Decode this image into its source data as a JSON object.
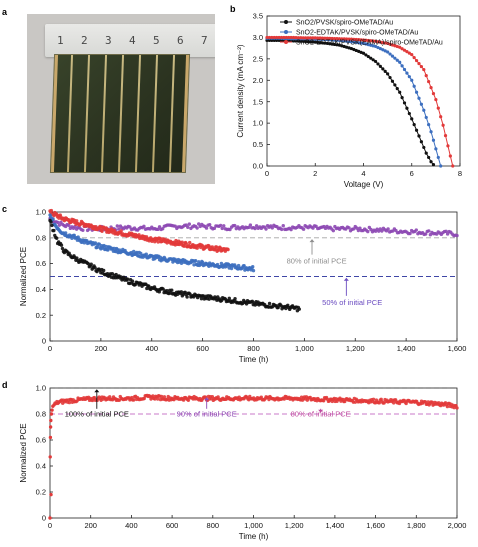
{
  "panel_labels": {
    "a": "a",
    "b": "b",
    "c": "c",
    "d": "d"
  },
  "photo": {
    "ruler_numbers": [
      "1",
      "2",
      "3",
      "4",
      "5",
      "6",
      "7"
    ]
  },
  "colors": {
    "black_series": "#111111",
    "blue_series": "#3d6fbf",
    "red_series": "#e23a3a",
    "purple_series": "#8c47b3",
    "ref_gray": "#a3a3a3",
    "ref_blue": "#3f46a6",
    "ref_black": "#444444",
    "ref_pink": "#c879c8"
  },
  "chart_data": [
    {
      "panel": "b",
      "type": "line",
      "xlabel": "Voltage (V)",
      "ylabel": "Current density (mA cm⁻²)",
      "xlim": [
        0,
        8
      ],
      "ylim": [
        0,
        3.5
      ],
      "xticks": [
        "0",
        "2",
        "4",
        "6",
        "8"
      ],
      "yticks": [
        "0.0",
        "0.5",
        "1.0",
        "1.5",
        "2.0",
        "2.5",
        "3.0",
        "3.5"
      ],
      "legend_position": "top-right",
      "series": [
        {
          "name": "SnO2/PVSK/spiro-OMeTAD/Au",
          "color": "#111111",
          "x": [
            0,
            0.5,
            1,
            1.5,
            2,
            2.5,
            3,
            3.5,
            4,
            4.5,
            5,
            5.5,
            6,
            6.3,
            6.6,
            6.8,
            6.95
          ],
          "y": [
            2.93,
            2.93,
            2.92,
            2.91,
            2.89,
            2.86,
            2.82,
            2.74,
            2.63,
            2.44,
            2.15,
            1.72,
            1.1,
            0.7,
            0.3,
            0.1,
            0.0
          ]
        },
        {
          "name": "SnO2-EDTAK/PVSK/spiro-OMeTAD/Au",
          "color": "#3d6fbf",
          "x": [
            0,
            0.5,
            1,
            1.5,
            2,
            2.5,
            3,
            3.5,
            4,
            4.5,
            5,
            5.5,
            6,
            6.5,
            6.8,
            7.0,
            7.2
          ],
          "y": [
            2.98,
            2.98,
            2.97,
            2.97,
            2.96,
            2.95,
            2.93,
            2.9,
            2.86,
            2.79,
            2.66,
            2.42,
            2.0,
            1.3,
            0.8,
            0.4,
            0.0
          ]
        },
        {
          "name": "SnO2-EDTAK/PVSK(EAMA)/spiro-OMeTAD/Au",
          "color": "#e23a3a",
          "x": [
            0,
            0.5,
            1,
            1.5,
            2,
            2.5,
            3,
            3.5,
            4,
            4.5,
            5,
            5.5,
            6,
            6.5,
            7,
            7.3,
            7.55,
            7.7
          ],
          "y": [
            3.0,
            3.0,
            3.0,
            2.99,
            2.99,
            2.98,
            2.97,
            2.96,
            2.94,
            2.91,
            2.86,
            2.77,
            2.6,
            2.25,
            1.55,
            0.95,
            0.35,
            0.0
          ]
        }
      ]
    },
    {
      "panel": "c",
      "type": "line",
      "xlabel": "Time (h)",
      "ylabel": "Normalized PCE",
      "xlim": [
        0,
        1600
      ],
      "ylim": [
        0,
        1.0
      ],
      "xticks": [
        "0",
        "200",
        "400",
        "600",
        "800",
        "1,000",
        "1,200",
        "1,400",
        "1,600"
      ],
      "yticks": [
        "0",
        "0.2",
        "0.4",
        "0.6",
        "0.8",
        "1.0"
      ],
      "series": [
        {
          "color": "#8c47b3",
          "x": [
            0,
            20,
            50,
            100,
            150,
            200,
            300,
            400,
            500,
            600,
            700,
            800,
            900,
            1000,
            1100,
            1200,
            1300,
            1400,
            1500,
            1600
          ],
          "y": [
            0.95,
            0.93,
            0.9,
            0.88,
            0.87,
            0.87,
            0.88,
            0.87,
            0.89,
            0.89,
            0.88,
            0.89,
            0.88,
            0.88,
            0.87,
            0.87,
            0.86,
            0.85,
            0.84,
            0.83
          ]
        },
        {
          "color": "#e23a3a",
          "x": [
            0,
            20,
            50,
            100,
            150,
            200,
            300,
            400,
            500,
            600,
            700
          ],
          "y": [
            1.0,
            0.98,
            0.95,
            0.92,
            0.9,
            0.87,
            0.83,
            0.79,
            0.76,
            0.73,
            0.7
          ]
        },
        {
          "color": "#3d6fbf",
          "x": [
            0,
            20,
            50,
            100,
            150,
            200,
            300,
            400,
            500,
            600,
            700,
            800
          ],
          "y": [
            0.97,
            0.9,
            0.84,
            0.8,
            0.76,
            0.73,
            0.69,
            0.65,
            0.62,
            0.6,
            0.58,
            0.56
          ]
        },
        {
          "color": "#111111",
          "x": [
            0,
            10,
            30,
            60,
            100,
            150,
            200,
            300,
            400,
            500,
            600,
            700,
            800,
            900,
            980
          ],
          "y": [
            0.93,
            0.88,
            0.77,
            0.69,
            0.64,
            0.59,
            0.54,
            0.47,
            0.41,
            0.37,
            0.34,
            0.32,
            0.29,
            0.27,
            0.25
          ]
        }
      ],
      "reference_lines": [
        {
          "y": 0.8,
          "color": "#a3a3a3"
        },
        {
          "y": 0.5,
          "color": "#3f46a6"
        }
      ],
      "annotations": [
        {
          "text": "80% of initial PCE",
          "color": "#8f8f8f",
          "arrow_x": 1030,
          "arrow_from": 0.67,
          "arrow_to": 0.79
        },
        {
          "text": "50% of initial PCE",
          "color": "#6a4bc0",
          "arrow_x": 1165,
          "arrow_from": 0.35,
          "arrow_to": 0.49
        }
      ]
    },
    {
      "panel": "d",
      "type": "line",
      "xlabel": "Time (h)",
      "ylabel": "Normalized PCE",
      "xlim": [
        0,
        2000
      ],
      "ylim": [
        0,
        1.0
      ],
      "xticks": [
        "0",
        "200",
        "400",
        "600",
        "800",
        "1,000",
        "1,200",
        "1,400",
        "1,600",
        "1,800",
        "2,000"
      ],
      "yticks": [
        "0",
        "0.2",
        "0.4",
        "0.6",
        "0.8",
        "1.0"
      ],
      "series": [
        {
          "color": "#e23a3a",
          "x": [
            0,
            2,
            5,
            10,
            20,
            40,
            80,
            150,
            250,
            400,
            500,
            600,
            800,
            1000,
            1200,
            1400,
            1600,
            1800,
            1900,
            2000
          ],
          "y": [
            0.0,
            0.48,
            0.75,
            0.82,
            0.87,
            0.89,
            0.9,
            0.91,
            0.92,
            0.92,
            0.93,
            0.92,
            0.92,
            0.92,
            0.92,
            0.91,
            0.9,
            0.89,
            0.88,
            0.86
          ]
        }
      ],
      "reference_lines": [
        {
          "y": 1.0,
          "color": "#444444"
        },
        {
          "y": 0.8,
          "color": "#c879c8"
        }
      ],
      "annotations": [
        {
          "text": "100% of initial PCE",
          "color": "#111111",
          "arrow_x": 230,
          "arrow_from": 0.84,
          "arrow_to": 0.99
        },
        {
          "text": "90% of initial PCE",
          "color": "#8c47b3",
          "arrow_x": 770,
          "arrow_from": 0.84,
          "arrow_to": 0.93
        },
        {
          "text": "80% of initial PCE",
          "color": "#c04ba0",
          "arrow_x": 1330,
          "arrow_from": 0.84,
          "arrow_to": 0.81
        }
      ]
    }
  ]
}
